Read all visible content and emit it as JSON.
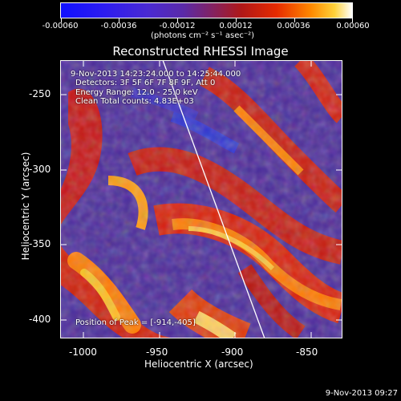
{
  "colorbar": {
    "tick_labels": [
      "-0.00060",
      "-0.00036",
      "-0.00012",
      "0.00012",
      "0.00036",
      "0.00060"
    ],
    "unit_label": "(photons cm⁻² s⁻¹ asec⁻²)"
  },
  "image": {
    "title": "Reconstructed RHESSI Image",
    "info_lines": [
      "9-Nov-2013 14:23:24.000 to 14:25:44.000",
      "Detectors: 3F 5F 6F 7F 8F 9F, Att 0",
      "Energy Range: 12.0 - 25.0 keV",
      "Clean     Total counts: 4.83E+03"
    ],
    "peak_label": "Position of Peak = [-914,-405]"
  },
  "axes": {
    "xlabel": "Heliocentric X (arcsec)",
    "ylabel": "Heliocentric Y (arcsec)",
    "x_ticks": [
      "-1000",
      "-950",
      "-900",
      "-850"
    ],
    "y_ticks": [
      "-250",
      "-300",
      "-350",
      "-400"
    ]
  },
  "footer": {
    "timestamp": "9-Nov-2013 09:27"
  }
}
